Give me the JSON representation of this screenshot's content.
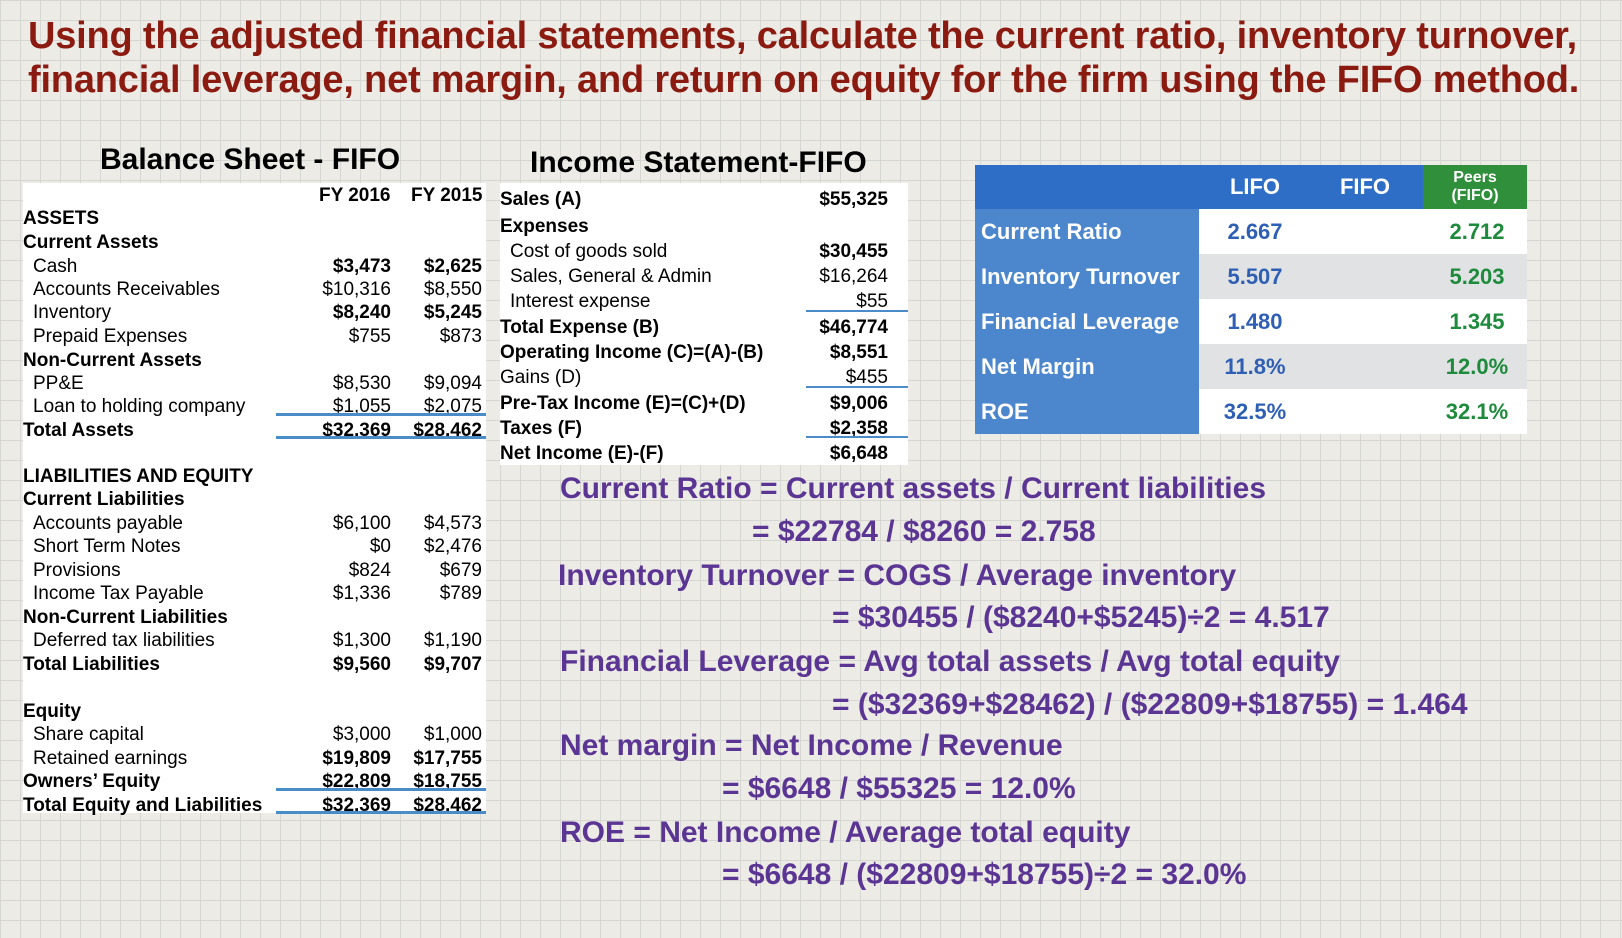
{
  "title": {
    "line1": "Using the adjusted financial statements, calculate the current ratio, inventory turnover,",
    "line2": "financial leverage, net margin, and return on equity for the firm using the FIFO method."
  },
  "balance_sheet": {
    "heading": "Balance Sheet - FIFO",
    "col1": "FY 2016",
    "col2": "FY 2015",
    "rows": [
      {
        "label": "ASSETS",
        "v1": "",
        "v2": ""
      },
      {
        "label": "Current Assets",
        "v1": "",
        "v2": ""
      },
      {
        "label": "Cash",
        "v1": "$3,473",
        "v2": "$2,625"
      },
      {
        "label": "Accounts Receivables",
        "v1": "$10,316",
        "v2": "$8,550"
      },
      {
        "label": "Inventory",
        "v1": "$8,240",
        "v2": "$5,245"
      },
      {
        "label": "Prepaid Expenses",
        "v1": "$755",
        "v2": "$873"
      },
      {
        "label": "Non-Current Assets",
        "v1": "",
        "v2": ""
      },
      {
        "label": "PP&E",
        "v1": "$8,530",
        "v2": "$9,094"
      },
      {
        "label": "Loan to holding company",
        "v1": "$1,055",
        "v2": "$2,075"
      },
      {
        "label": "Total Assets",
        "v1": "$32,369",
        "v2": "$28,462"
      },
      {
        "label": "LIABILITIES AND EQUITY",
        "v1": "",
        "v2": ""
      },
      {
        "label": "Current Liabilities",
        "v1": "",
        "v2": ""
      },
      {
        "label": "Accounts payable",
        "v1": "$6,100",
        "v2": "$4,573"
      },
      {
        "label": "Short Term Notes",
        "v1": "$0",
        "v2": "$2,476"
      },
      {
        "label": "Provisions",
        "v1": "$824",
        "v2": "$679"
      },
      {
        "label": "Income Tax Payable",
        "v1": "$1,336",
        "v2": "$789"
      },
      {
        "label": "Non-Current Liabilities",
        "v1": "",
        "v2": ""
      },
      {
        "label": "Deferred tax liabilities",
        "v1": "$1,300",
        "v2": "$1,190"
      },
      {
        "label": "Total Liabilities",
        "v1": "$9,560",
        "v2": "$9,707"
      },
      {
        "label": "Equity",
        "v1": "",
        "v2": ""
      },
      {
        "label": "Share capital",
        "v1": "$3,000",
        "v2": "$1,000"
      },
      {
        "label": "Retained earnings",
        "v1": "$19,809",
        "v2": "$17,755"
      },
      {
        "label": "Owners’ Equity",
        "v1": "$22,809",
        "v2": "$18,755"
      },
      {
        "label": "Total Equity and Liabilities",
        "v1": "$32,369",
        "v2": "$28,462"
      }
    ]
  },
  "income_statement": {
    "heading": "Income Statement-FIFO",
    "rows": [
      {
        "label": "Sales (A)",
        "value": "$55,325"
      },
      {
        "label": "Expenses",
        "value": ""
      },
      {
        "label": "Cost of goods sold",
        "value": "$30,455"
      },
      {
        "label": "Sales, General & Admin",
        "value": "$16,264"
      },
      {
        "label": "Interest expense",
        "value": "$55"
      },
      {
        "label": "Total Expense (B)",
        "value": "$46,774"
      },
      {
        "label": "Operating Income (C)=(A)-(B)",
        "value": "$8,551"
      },
      {
        "label": "Gains (D)",
        "value": "$455"
      },
      {
        "label": "Pre-Tax Income (E)=(C)+(D)",
        "value": "$9,006"
      },
      {
        "label": "Taxes (F)",
        "value": "$2,358"
      },
      {
        "label": "Net Income (E)-(F)",
        "value": "$6,648"
      }
    ]
  },
  "ratio_table": {
    "headers": {
      "lifo": "LIFO",
      "fifo": "FIFO",
      "peers_line1": "Peers",
      "peers_line2": "(FIFO)"
    },
    "rows": [
      {
        "label": "Current Ratio",
        "lifo": "2.667",
        "fifo": "",
        "peers": "2.712"
      },
      {
        "label": "Inventory Turnover",
        "lifo": "5.507",
        "fifo": "",
        "peers": "5.203"
      },
      {
        "label": "Financial Leverage",
        "lifo": "1.480",
        "fifo": "",
        "peers": "1.345"
      },
      {
        "label": "Net Margin",
        "lifo": "11.8%",
        "fifo": "",
        "peers": "12.0%"
      },
      {
        "label": "ROE",
        "lifo": "32.5%",
        "fifo": "",
        "peers": "32.1%"
      }
    ],
    "colors": {
      "header": "#2f6ec6",
      "label": "#4c87cd",
      "lifo_text": "#2f5fb4",
      "peers_text": "#1e8a3c",
      "peers_header": "#2f8f3a"
    }
  },
  "formulas": [
    "Current Ratio = Current assets / Current liabilities",
    "= $22784 / $8260  = 2.758",
    "Inventory Turnover = COGS / Average inventory",
    "= $30455 / ($8240+$5245)÷2  = 4.517",
    "Financial Leverage = Avg total assets / Avg total equity",
    "= ($32369+$28462) / ($22809+$18755)  = 1.464",
    "Net margin = Net Income / Revenue",
    "= $6648 / $55325  = 12.0%",
    "ROE = Net Income / Average total equity",
    "= $6648 / ($22809+$18755)÷2   = 32.0%"
  ]
}
